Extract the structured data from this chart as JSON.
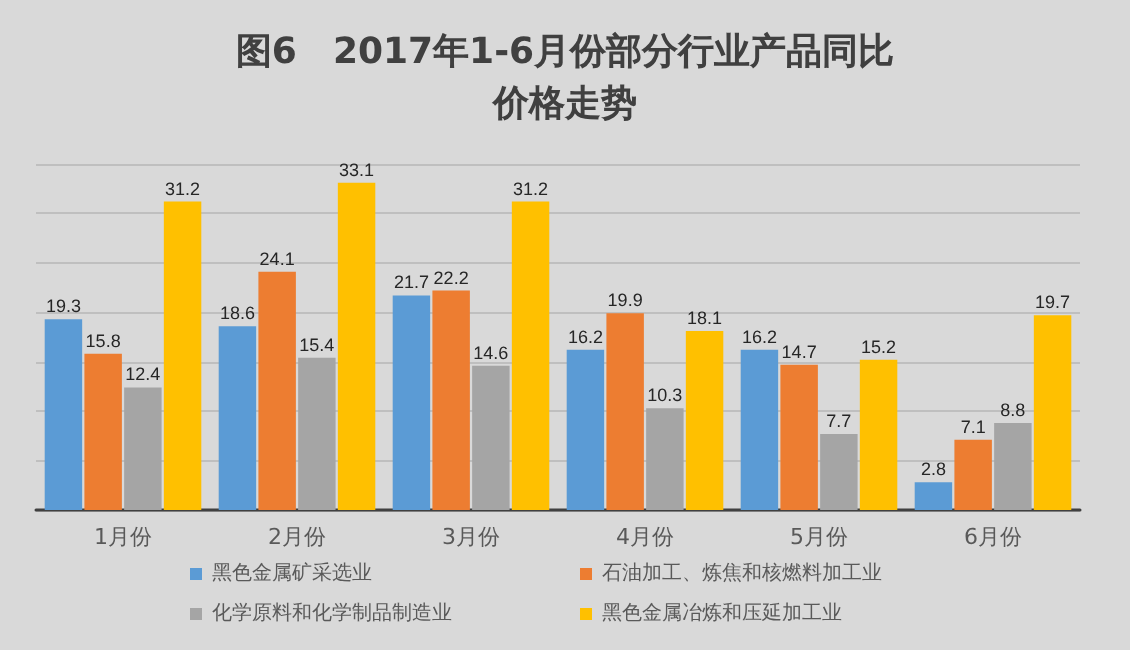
{
  "chart_data": {
    "type": "bar",
    "title": "图6　2017年1-6月份部分行业产品同比价格走势",
    "categories": [
      "1月份",
      "2月份",
      "3月份",
      "4月份",
      "5月份",
      "6月份"
    ],
    "series": [
      {
        "name": "黑色金属矿采选业",
        "color": "#5b9bd5",
        "values": [
          19.3,
          18.6,
          21.7,
          16.2,
          16.2,
          2.8
        ]
      },
      {
        "name": "石油加工、炼焦和核燃料加工业",
        "color": "#ed7d31",
        "values": [
          15.8,
          24.1,
          22.2,
          19.9,
          14.7,
          7.1
        ]
      },
      {
        "name": "化学原料和化学制品制造业",
        "color": "#a5a5a5",
        "values": [
          12.4,
          15.4,
          14.6,
          10.3,
          7.7,
          8.8
        ]
      },
      {
        "name": "黑色金属冶炼和压延加工业",
        "color": "#ffc000",
        "values": [
          31.2,
          33.1,
          31.2,
          18.1,
          15.2,
          19.7
        ]
      }
    ],
    "ylim": [
      0,
      35
    ],
    "yticks": [
      {
        "value": 0,
        "label": null
      },
      {
        "value": 5,
        "label": null
      },
      {
        "value": 10,
        "label": null
      },
      {
        "value": 15,
        "label": null
      },
      {
        "value": 20,
        "label": null
      },
      {
        "value": 25,
        "label": null
      },
      {
        "value": 30,
        "label": null
      },
      {
        "value": 35,
        "label": null
      }
    ],
    "tick_labels": "x",
    "grid": "y",
    "legend": "bottom",
    "data_labels": true
  }
}
